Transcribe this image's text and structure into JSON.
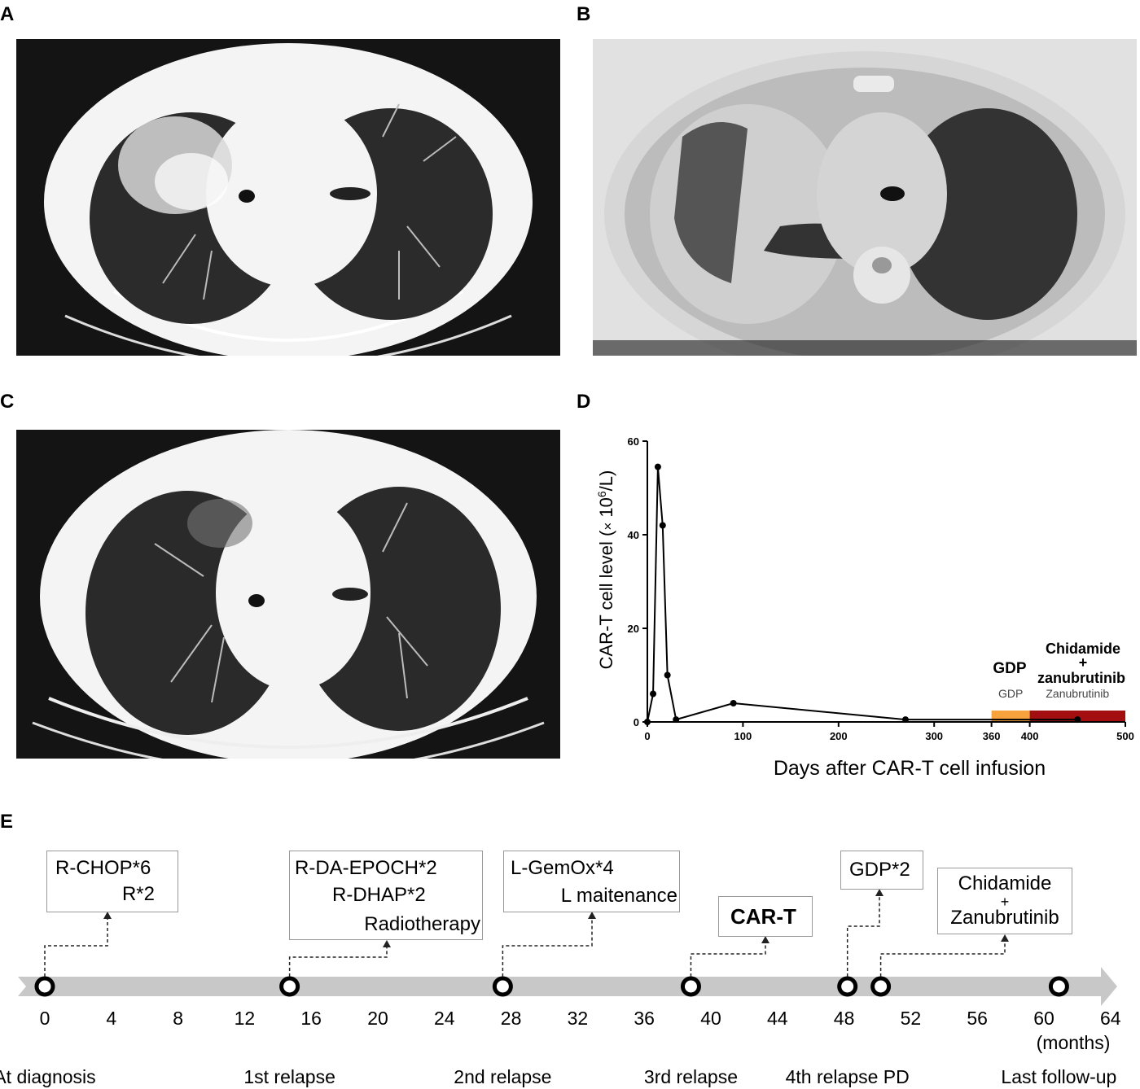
{
  "panels": {
    "a": {
      "letter": "A",
      "image": "ct-scan-a"
    },
    "b": {
      "letter": "B",
      "image": "ct-scan-b"
    },
    "c": {
      "letter": "C",
      "image": "ct-scan-c"
    },
    "d": {
      "letter": "D"
    },
    "e": {
      "letter": "E"
    }
  },
  "chart_data": {
    "type": "line",
    "ylabel_main": "CAR-T cell level (",
    "ylabel_times": "×",
    "ylabel_base": " 10",
    "ylabel_exp": "6",
    "ylabel_unit": "/L)",
    "xlabel": "Days after CAR-T cell infusion",
    "xlim": [
      0,
      500
    ],
    "ylim": [
      0,
      60
    ],
    "x_ticks": [
      "0",
      "100",
      "200",
      "300",
      "360",
      "400",
      "500"
    ],
    "x_tick_values": [
      0,
      100,
      200,
      300,
      360,
      400,
      500
    ],
    "y_ticks": [
      "0",
      "20",
      "40",
      "60"
    ],
    "y_tick_values": [
      0,
      20,
      40,
      60
    ],
    "series": [
      {
        "x": [
          0,
          6,
          11,
          16,
          21,
          30,
          90,
          270,
          450
        ],
        "y": [
          0,
          6,
          54.5,
          42,
          10,
          0.5,
          4,
          0.5,
          0.5
        ]
      }
    ],
    "bands": [
      {
        "label": "GDP",
        "start": 360,
        "end": 400,
        "color": "#f7a23c"
      },
      {
        "label": "Zanubrutinib",
        "start": 400,
        "end": 500,
        "color": "#a30f10"
      }
    ],
    "annotations": {
      "gdp_bold": "GDP",
      "chid_line1": "Chidamide",
      "chid_line2": "+",
      "chid_line3": "zanubrutinib"
    },
    "line_color": "#000000"
  },
  "timeline": {
    "axis_color": "#c8c8c8",
    "ticks": [
      "0",
      "4",
      "8",
      "12",
      "16",
      "20",
      "24",
      "28",
      "32",
      "36",
      "40",
      "44",
      "48",
      "52",
      "56",
      "60",
      "64"
    ],
    "unit": "(months)",
    "events": [
      {
        "label": "At diagnosis",
        "month": 0
      },
      {
        "label": "1st relapse",
        "month": 14.7
      },
      {
        "label": "2nd relapse",
        "month": 27.5
      },
      {
        "label": "3rd relapse",
        "month": 38.8
      },
      {
        "label": "4th relapse PD",
        "month": 48.2
      },
      {
        "label": "Last follow-up",
        "month": 60.9
      }
    ],
    "extra_marker_month": 50.2,
    "boxes": {
      "rchop": {
        "line1": "R-CHOP*6",
        "line2": "R*2"
      },
      "rda": {
        "line1": "R-DA-EPOCH*2",
        "line2": "R-DHAP*2",
        "line3": "Radiotherapy"
      },
      "lgem": {
        "line1": "L-GemOx*4",
        "line2": "L maitenance"
      },
      "cart": {
        "line1": "CAR-T"
      },
      "gdp": {
        "line1": "GDP*2"
      },
      "chid": {
        "line1": "Chidamide",
        "line2": "+",
        "line3": "Zanubrutinib"
      }
    }
  }
}
